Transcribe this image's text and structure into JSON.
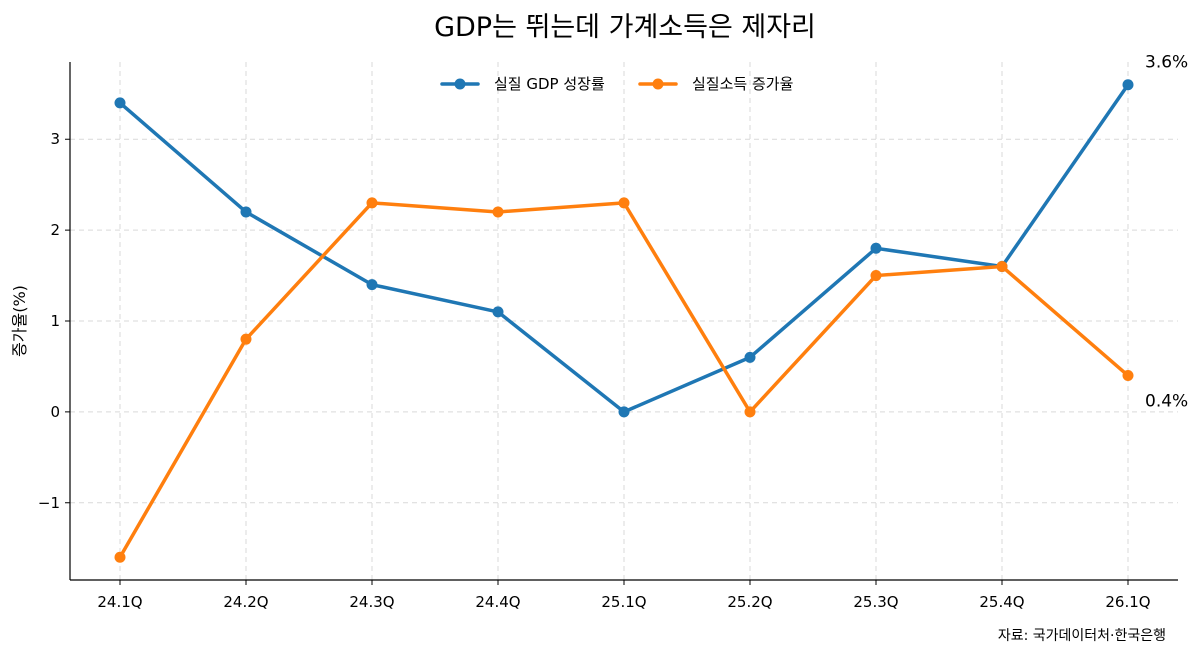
{
  "chart_data": {
    "type": "line",
    "title": "GDP는 뛰는데 가계소득은 제자리",
    "xlabel": "",
    "ylabel": "증가율(%)",
    "categories": [
      "24.1Q",
      "24.2Q",
      "24.3Q",
      "24.4Q",
      "25.1Q",
      "25.2Q",
      "25.3Q",
      "25.4Q",
      "26.1Q"
    ],
    "ylim": [
      -1.85,
      3.85
    ],
    "yticks": [
      -1,
      0,
      1,
      2,
      3
    ],
    "ytick_labels": [
      "−1",
      "0",
      "1",
      "2",
      "3"
    ],
    "grid": true,
    "legend_position": "top-center",
    "series": [
      {
        "name": "실질 GDP 성장률",
        "color": "#1f77b4",
        "values": [
          3.4,
          2.2,
          1.4,
          1.1,
          0.0,
          0.6,
          1.8,
          1.6,
          3.6
        ]
      },
      {
        "name": "실질소득 증가율",
        "color": "#ff7f0e",
        "values": [
          -1.6,
          0.8,
          2.3,
          2.2,
          2.3,
          0.0,
          1.5,
          1.6,
          0.4
        ]
      }
    ],
    "annotations": [
      {
        "text": "3.6%",
        "series": 0,
        "index": 8
      },
      {
        "text": "0.4%",
        "series": 1,
        "index": 8
      }
    ],
    "source": "자료: 국가데이터처·한국은행"
  }
}
